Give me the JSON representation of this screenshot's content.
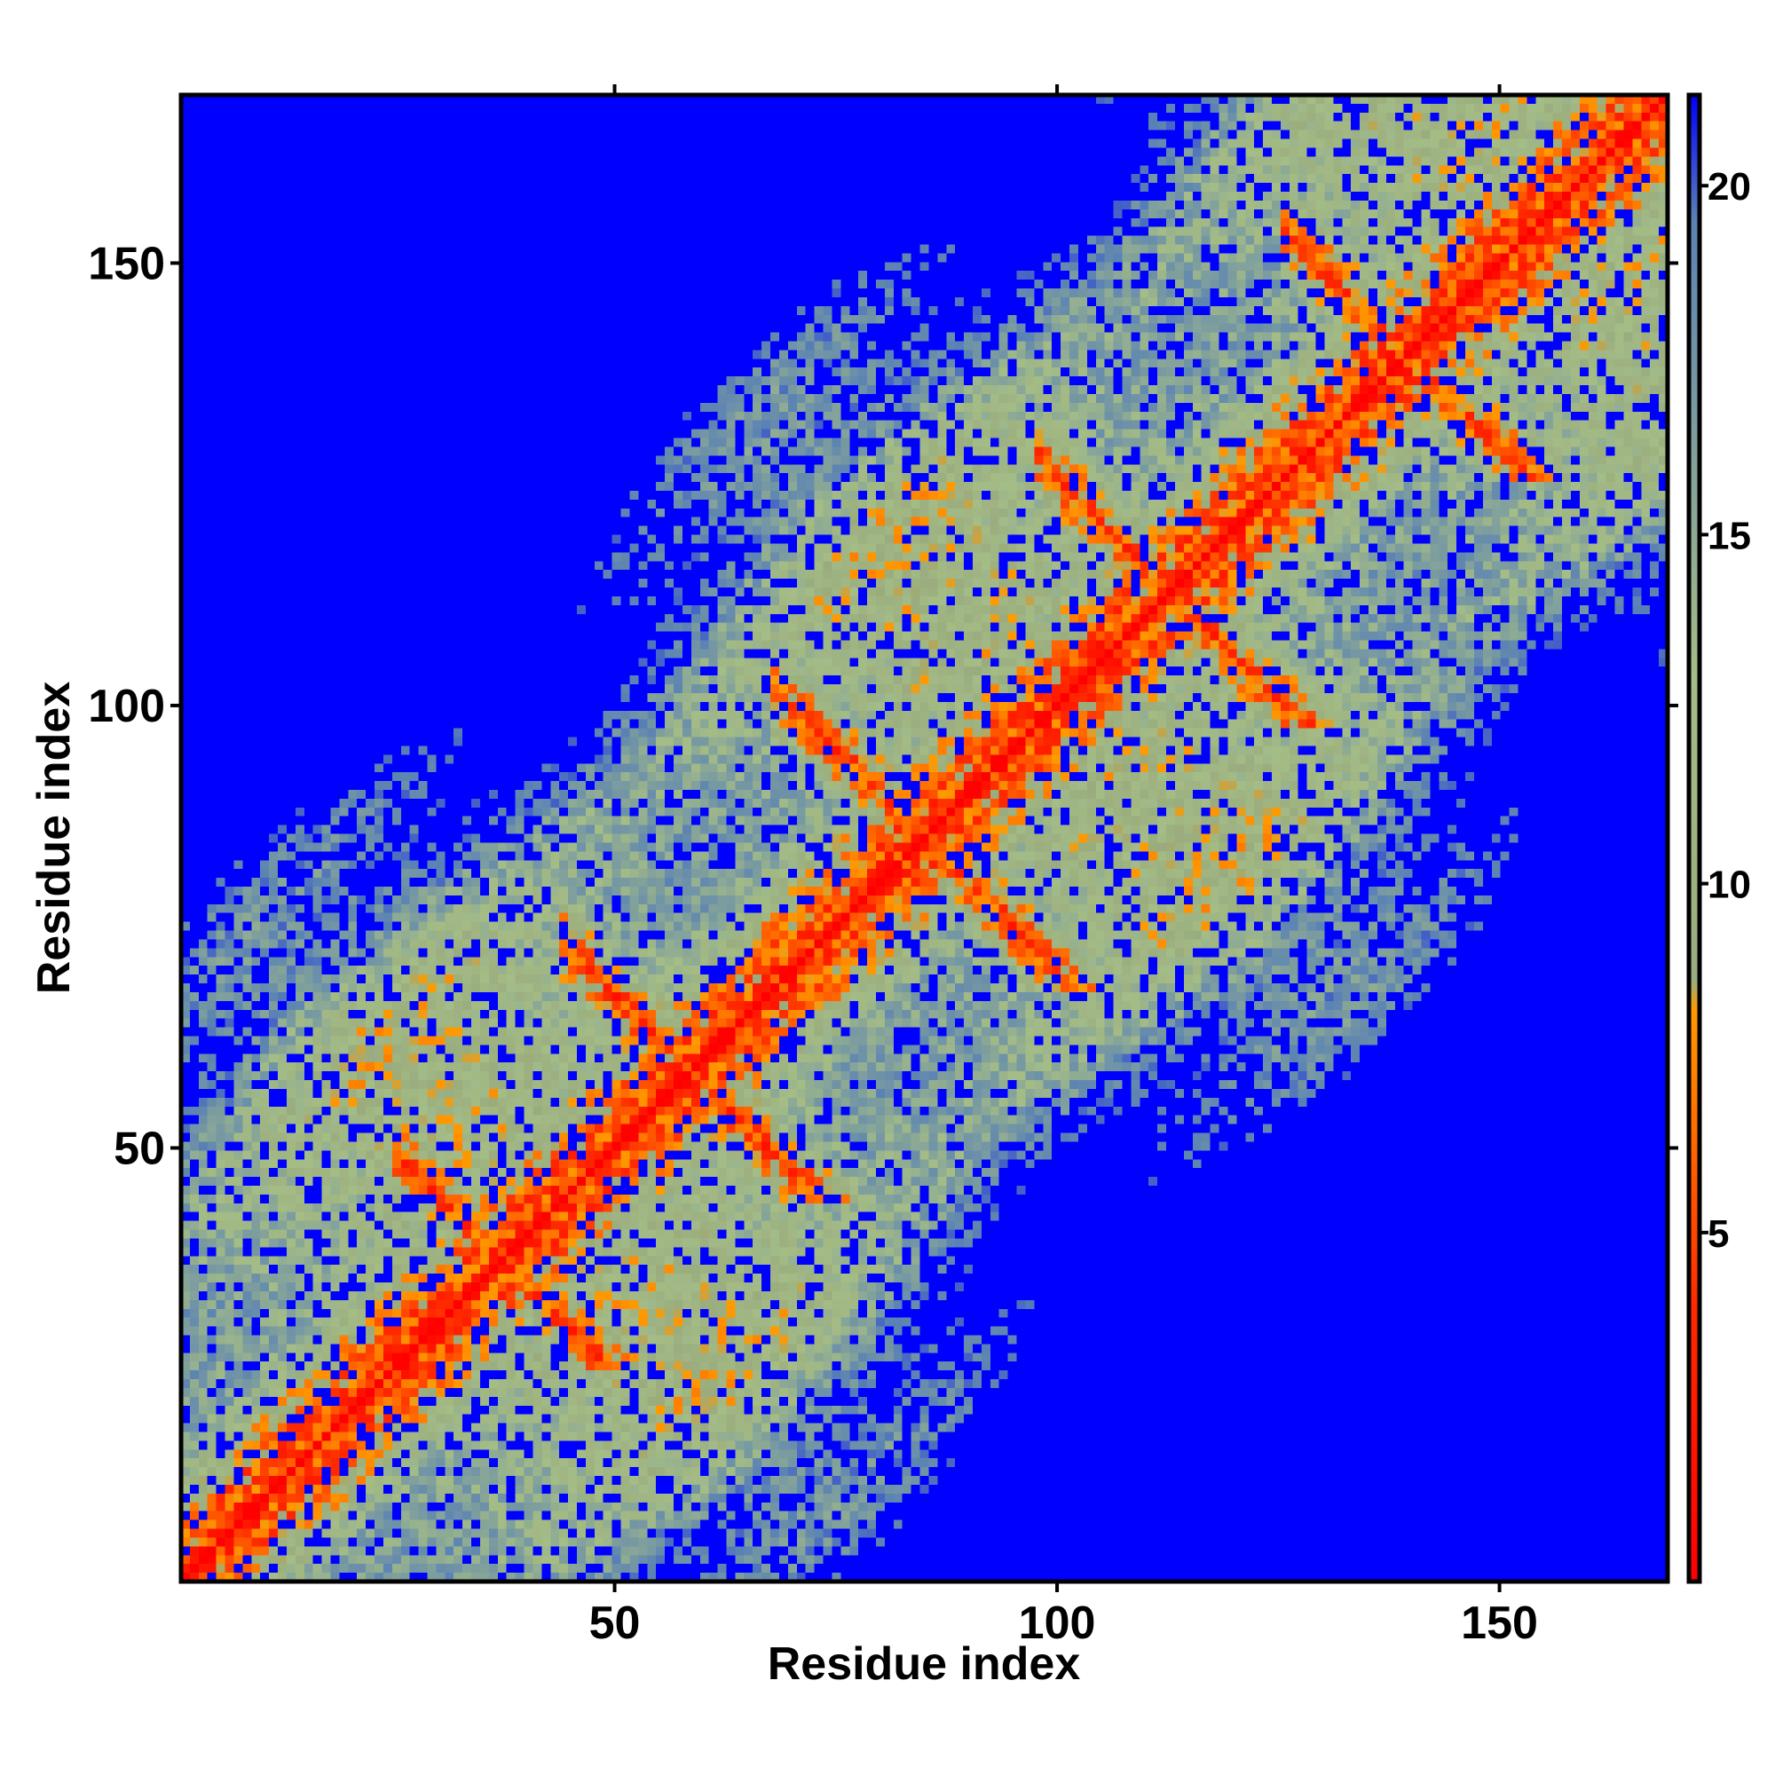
{
  "chart_data": {
    "type": "heatmap",
    "title": "",
    "xlabel": "Residue index",
    "ylabel": "Residue index",
    "xlim": [
      1,
      169
    ],
    "ylim": [
      1,
      169
    ],
    "x_ticks": [
      50,
      100,
      150
    ],
    "y_ticks": [
      50,
      100,
      150
    ],
    "n_residues": 169,
    "colorbar": {
      "ticks": [
        5,
        10,
        15,
        20
      ],
      "range": [
        0,
        21.3
      ],
      "colors": {
        "low": "#ff0000",
        "mid_low": "#ff9900",
        "mid": "#a0b880",
        "high": "#5a82b4",
        "max": "#0000ff"
      },
      "stops": [
        {
          "value": 0,
          "color": "#ff0000"
        },
        {
          "value": 4,
          "color": "#ff2a00"
        },
        {
          "value": 8.2,
          "color": "#ff9a00"
        },
        {
          "value": 8.6,
          "color": "#9aac7e"
        },
        {
          "value": 13,
          "color": "#a4bc86"
        },
        {
          "value": 19.5,
          "color": "#5a82b4"
        },
        {
          "value": 21.3,
          "color": "#0000ff"
        }
      ]
    },
    "structure": {
      "diagonal_color": "#ff0000",
      "cutoff": 20,
      "background": "#0000ff",
      "beta_ladders": [
        {
          "i_range": [
            27,
            64
          ],
          "j_start": 47,
          "direction": "antiparallel"
        },
        {
          "i_range": [
            46,
            84
          ],
          "j_start": 71,
          "direction": "antiparallel"
        },
        {
          "i_range": [
            70,
            108
          ],
          "j_start": 100,
          "direction": "antiparallel"
        },
        {
          "i_range": [
            100,
            128
          ],
          "j_start": 126,
          "direction": "antiparallel"
        },
        {
          "i_range": [
            128,
            152
          ],
          "j_start": 152,
          "direction": "antiparallel"
        }
      ]
    }
  }
}
